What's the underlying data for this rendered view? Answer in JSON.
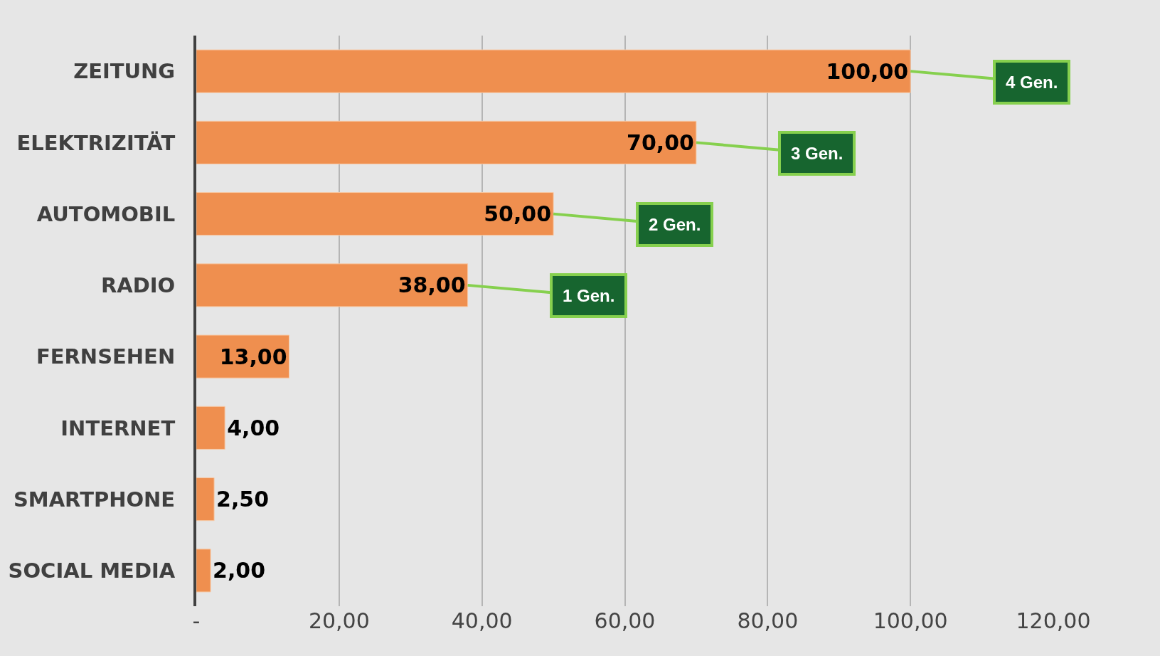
{
  "chart_data": {
    "type": "bar",
    "orientation": "horizontal",
    "categories": [
      "ZEITUNG",
      "ELEKTRIZITÄT",
      "AUTOMOBIL",
      "RADIO",
      "FERNSEHEN",
      "INTERNET",
      "SMARTPHONE",
      "SOCIAL MEDIA"
    ],
    "values": [
      100,
      70,
      50,
      38,
      13,
      4,
      2.5,
      2
    ],
    "value_labels": [
      "100,00",
      "70,00",
      "50,00",
      "38,00",
      "13,00",
      "4,00",
      "2,50",
      "2,00"
    ],
    "color": "#ef8f4f",
    "xlim": [
      0,
      120
    ],
    "xticks": [
      {
        "value": 0,
        "label": "-"
      },
      {
        "value": 20,
        "label": "20,00"
      },
      {
        "value": 40,
        "label": "40,00"
      },
      {
        "value": 60,
        "label": "60,00"
      },
      {
        "value": 80,
        "label": "80,00"
      },
      {
        "value": 100,
        "label": "100,00"
      },
      {
        "value": 120,
        "label": "120,00"
      }
    ],
    "grid": "x",
    "legend": false,
    "annotations": [
      {
        "text": "4 Gen.",
        "x": 100,
        "y": "ZEITUNG"
      },
      {
        "text": "3 Gen.",
        "x": 70,
        "y": "ELEKTRIZITÄT"
      },
      {
        "text": "2 Gen.",
        "x": 50,
        "y": "AUTOMOBIL"
      },
      {
        "text": "1 Gen.",
        "x": 38,
        "y": "RADIO"
      }
    ]
  }
}
